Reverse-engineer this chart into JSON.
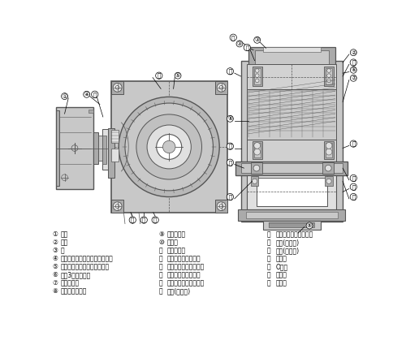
{
  "bg_color": "#ffffff",
  "gl": "#c8c8c8",
  "gm": "#aaaaaa",
  "gd": "#555555",
  "gll": "#e0e0e0",
  "legend_col1": [
    [
      "①",
      "电机"
    ],
    [
      "②",
      "筱体"
    ],
    [
      "③",
      "盖"
    ],
    [
      "④",
      "电机小齿轮（准双曲面小齿轮）"
    ],
    [
      "⑤",
      "第一段齿轮（准双曲面齿轮）"
    ],
    [
      "⑥",
      "带第3轴的小齿轮"
    ],
    [
      "⑦",
      "第二段齿轮"
    ],
    [
      "⑧",
      "第三轴带小齿轮"
    ]
  ],
  "legend_col2": [
    [
      "⑨",
      "第三段齿轮"
    ],
    [
      "⑩",
      "输出轴"
    ],
    [
      "⑪",
      "空心轴输出"
    ],
    [
      "⑫",
      "轴承（第二轴盖端）"
    ],
    [
      "⑬",
      "轴承（第二轴筱体端）"
    ],
    [
      "⑭",
      "轴承（第三轴盖端）"
    ],
    [
      "⑮",
      "轴承（第三轴筱体端）"
    ],
    [
      "⑯",
      "轴承(输出轴)"
    ]
  ],
  "legend_col3": [
    [
      "Ⓐ",
      "轴承（电机轴负载端）"
    ],
    [
      "Ⓑ",
      "油封(输出端)"
    ],
    [
      "Ⓒ",
      "油封(电机轴)"
    ],
    [
      "Ⓓ",
      "密封盖"
    ],
    [
      "Ⓔ",
      "O形环"
    ],
    [
      "Ⓕ",
      "过滤器"
    ],
    [
      "Ⓖ",
      "密封件"
    ]
  ]
}
